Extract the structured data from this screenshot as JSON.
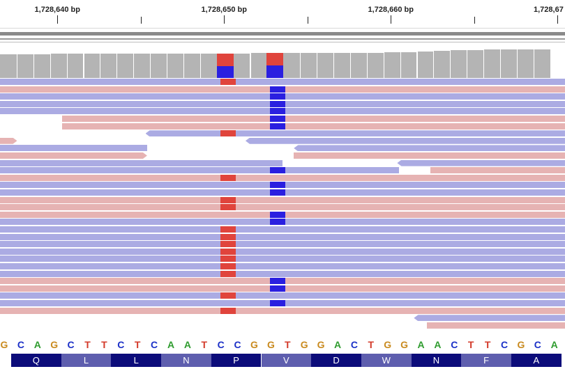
{
  "ruler": {
    "ticks": [
      {
        "label": "1,728,640 bp",
        "pos": 1728640
      },
      {
        "label": "1,728,650 bp",
        "pos": 1728650
      },
      {
        "label": "1,728,660 bp",
        "pos": 1728660
      },
      {
        "label": "1,728,67",
        "pos": 1728670
      }
    ]
  },
  "colors": {
    "fwd_read": "#e6b3b3",
    "rev_read": "#ababe3",
    "mismatch_c": "#e0443c",
    "mismatch_g": "#2a1fe0",
    "coverage": "#b4b4b4",
    "aa_dark": "#0c0c7a",
    "aa_light": "#5e5eae",
    "base_colors": {
      "A": "#2f9c2f",
      "C": "#1b30c7",
      "G": "#c98a1e",
      "T": "#d33a2a"
    }
  },
  "coverage": {
    "heights": [
      34,
      34,
      34,
      35,
      35,
      35,
      35,
      35,
      35,
      35,
      35,
      35,
      35,
      35,
      35,
      36,
      36,
      36,
      36,
      36,
      36,
      36,
      36,
      37,
      37,
      38,
      39,
      40,
      40,
      41,
      41,
      41,
      41
    ],
    "mismatch_columns": [
      {
        "index": 13,
        "colors": [
          "#e0443c",
          "#2a1fe0"
        ]
      },
      {
        "index": 16,
        "colors": [
          "#e0443c",
          "#2a1fe0"
        ]
      }
    ]
  },
  "reads": [
    {
      "row": 0,
      "start": 0,
      "end": 33,
      "strand": "rev",
      "mismatches": [
        {
          "index": 13,
          "color": "#e0443c"
        }
      ]
    },
    {
      "row": 1,
      "start": 0,
      "end": 33,
      "strand": "fwd",
      "mismatches": [
        {
          "index": 16,
          "color": "#2a1fe0"
        }
      ]
    },
    {
      "row": 2,
      "start": 0,
      "end": 33,
      "strand": "rev",
      "mismatches": [
        {
          "index": 16,
          "color": "#2a1fe0"
        }
      ]
    },
    {
      "row": 3,
      "start": 0,
      "end": 33,
      "strand": "rev",
      "mismatches": [
        {
          "index": 16,
          "color": "#2a1fe0"
        }
      ]
    },
    {
      "row": 4,
      "start": 0,
      "end": 33,
      "strand": "rev",
      "mismatches": [
        {
          "index": 16,
          "color": "#2a1fe0"
        }
      ]
    },
    {
      "row": 5,
      "start": 3.6,
      "end": 33,
      "strand": "fwd",
      "mismatches": [
        {
          "index": 16,
          "color": "#2a1fe0"
        }
      ]
    },
    {
      "row": 6,
      "start": 3.6,
      "end": 33,
      "strand": "fwd",
      "mismatches": [
        {
          "index": 16,
          "color": "#2a1fe0"
        }
      ]
    },
    {
      "row": 7,
      "start": 8.6,
      "end": 33,
      "strand": "rev",
      "mismatches": [
        {
          "index": 13,
          "color": "#e0443c"
        }
      ]
    },
    {
      "row": 8,
      "start": 0,
      "end": 0.9,
      "strand": "fwd",
      "mismatches": []
    },
    {
      "row": 8,
      "start": 14.6,
      "end": 33,
      "strand": "rev",
      "mismatches": []
    },
    {
      "row": 9,
      "start": 0,
      "end": 8.7,
      "strand": "rev",
      "mismatches": []
    },
    {
      "row": 9,
      "start": 17.5,
      "end": 33,
      "strand": "rev",
      "mismatches": []
    },
    {
      "row": 10,
      "start": 0,
      "end": 8.7,
      "strand": "fwd",
      "mismatches": []
    },
    {
      "row": 10,
      "start": 17.5,
      "end": 33,
      "strand": "fwd",
      "mismatches": []
    },
    {
      "row": 11,
      "start": 0,
      "end": 16.8,
      "strand": "rev",
      "mismatches": []
    },
    {
      "row": 11,
      "start": 23.7,
      "end": 33,
      "strand": "rev",
      "mismatches": []
    },
    {
      "row": 12,
      "start": 0,
      "end": 23.8,
      "strand": "rev",
      "mismatches": [
        {
          "index": 16,
          "color": "#2a1fe0"
        }
      ]
    },
    {
      "row": 12,
      "start": 25.7,
      "end": 33,
      "strand": "fwd",
      "mismatches": []
    },
    {
      "row": 13,
      "start": 0,
      "end": 33,
      "strand": "fwd",
      "mismatches": [
        {
          "index": 13,
          "color": "#e0443c"
        }
      ]
    },
    {
      "row": 14,
      "start": 0,
      "end": 33,
      "strand": "rev",
      "mismatches": [
        {
          "index": 16,
          "color": "#2a1fe0"
        }
      ]
    },
    {
      "row": 15,
      "start": 0,
      "end": 33,
      "strand": "rev",
      "mismatches": [
        {
          "index": 16,
          "color": "#2a1fe0"
        }
      ]
    },
    {
      "row": 16,
      "start": 0,
      "end": 33,
      "strand": "fwd",
      "mismatches": [
        {
          "index": 13,
          "color": "#e0443c"
        }
      ]
    },
    {
      "row": 17,
      "start": 0,
      "end": 33,
      "strand": "fwd",
      "mismatches": [
        {
          "index": 13,
          "color": "#e0443c"
        }
      ]
    },
    {
      "row": 18,
      "start": 0,
      "end": 33,
      "strand": "fwd",
      "mismatches": [
        {
          "index": 16,
          "color": "#2a1fe0"
        }
      ]
    },
    {
      "row": 19,
      "start": 0,
      "end": 33,
      "strand": "rev",
      "mismatches": [
        {
          "index": 16,
          "color": "#2a1fe0"
        }
      ]
    },
    {
      "row": 20,
      "start": 0,
      "end": 33,
      "strand": "rev",
      "mismatches": [
        {
          "index": 13,
          "color": "#e0443c"
        }
      ]
    },
    {
      "row": 21,
      "start": 0,
      "end": 33,
      "strand": "rev",
      "mismatches": [
        {
          "index": 13,
          "color": "#e0443c"
        }
      ]
    },
    {
      "row": 22,
      "start": 0,
      "end": 33,
      "strand": "rev",
      "mismatches": [
        {
          "index": 13,
          "color": "#e0443c"
        }
      ]
    },
    {
      "row": 23,
      "start": 0,
      "end": 33,
      "strand": "rev",
      "mismatches": [
        {
          "index": 13,
          "color": "#e0443c"
        }
      ]
    },
    {
      "row": 24,
      "start": 0,
      "end": 33,
      "strand": "rev",
      "mismatches": [
        {
          "index": 13,
          "color": "#e0443c"
        }
      ]
    },
    {
      "row": 25,
      "start": 0,
      "end": 33,
      "strand": "rev",
      "mismatches": [
        {
          "index": 13,
          "color": "#e0443c"
        }
      ]
    },
    {
      "row": 26,
      "start": 0,
      "end": 33,
      "strand": "rev",
      "mismatches": [
        {
          "index": 13,
          "color": "#e0443c"
        }
      ]
    },
    {
      "row": 27,
      "start": 0,
      "end": 33,
      "strand": "fwd",
      "mismatches": [
        {
          "index": 16,
          "color": "#2a1fe0"
        }
      ]
    },
    {
      "row": 28,
      "start": 0,
      "end": 33,
      "strand": "fwd",
      "mismatches": [
        {
          "index": 16,
          "color": "#2a1fe0"
        }
      ]
    },
    {
      "row": 29,
      "start": 0,
      "end": 33,
      "strand": "rev",
      "mismatches": [
        {
          "index": 13,
          "color": "#e0443c"
        }
      ]
    },
    {
      "row": 30,
      "start": 0,
      "end": 33,
      "strand": "rev",
      "mismatches": [
        {
          "index": 16,
          "color": "#2a1fe0"
        }
      ]
    },
    {
      "row": 31,
      "start": 0,
      "end": 33,
      "strand": "fwd",
      "mismatches": [
        {
          "index": 13,
          "color": "#e0443c"
        }
      ]
    },
    {
      "row": 32,
      "start": 24.7,
      "end": 33,
      "strand": "rev",
      "mismatches": []
    },
    {
      "row": 33,
      "start": 25.5,
      "end": 33,
      "strand": "fwd",
      "mismatches": []
    }
  ],
  "sequence": [
    "G",
    "C",
    "A",
    "G",
    "C",
    "T",
    "T",
    "C",
    "T",
    "C",
    "A",
    "A",
    "T",
    "C",
    "C",
    "G",
    "G",
    "T",
    "G",
    "G",
    "A",
    "C",
    "T",
    "G",
    "G",
    "A",
    "A",
    "C",
    "T",
    "T",
    "C",
    "G",
    "C",
    "A"
  ],
  "translation": [
    {
      "aa": "Q",
      "shade": "dark"
    },
    {
      "aa": "L",
      "shade": "light"
    },
    {
      "aa": "L",
      "shade": "dark"
    },
    {
      "aa": "N",
      "shade": "light"
    },
    {
      "aa": "P",
      "shade": "dark"
    },
    {
      "aa": "V",
      "shade": "light"
    },
    {
      "aa": "D",
      "shade": "dark"
    },
    {
      "aa": "W",
      "shade": "light"
    },
    {
      "aa": "N",
      "shade": "dark"
    },
    {
      "aa": "F",
      "shade": "light"
    },
    {
      "aa": "A",
      "shade": "dark"
    }
  ]
}
